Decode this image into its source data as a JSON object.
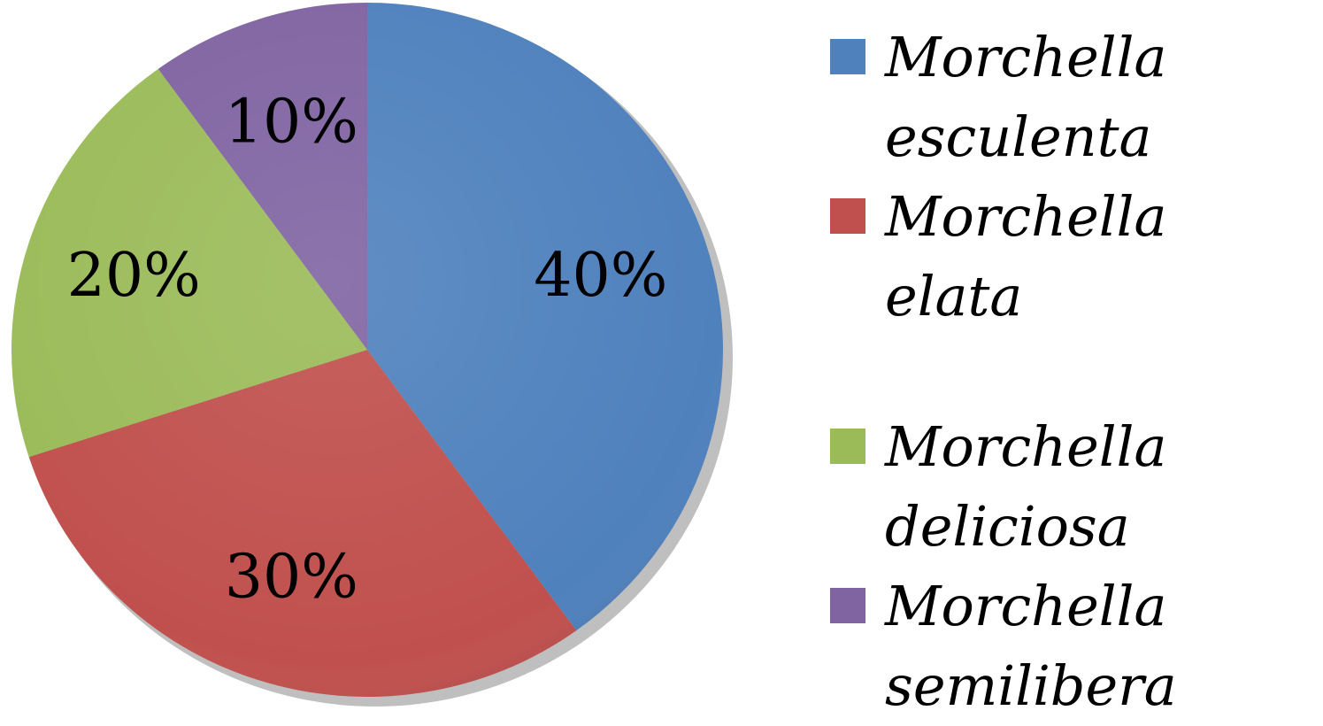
{
  "chart_data": {
    "type": "pie",
    "title": "",
    "legend_position": "right",
    "slices": [
      {
        "name": "Morchella esculenta",
        "value": 40,
        "label": "40%",
        "color": "#4F81BD"
      },
      {
        "name": "Morchella elata",
        "value": 30,
        "label": "30%",
        "color": "#C0504D"
      },
      {
        "name": "Morchella deliciosa",
        "value": 20,
        "label": "20%",
        "color": "#9BBB59"
      },
      {
        "name": "Morchella semilibera",
        "value": 10,
        "label": "10%",
        "color": "#8064A2"
      }
    ]
  }
}
